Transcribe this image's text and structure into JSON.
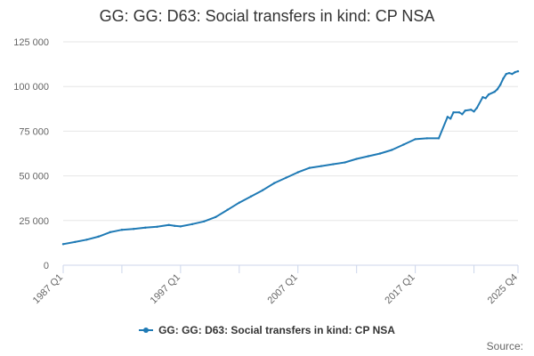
{
  "colors": {
    "series": "#1f7ab5",
    "grid": "#e6e6e6",
    "axis": "#ccd6eb",
    "text": "#666666"
  },
  "credits": "Source:",
  "chart_data": {
    "type": "line",
    "title": "GG: GG: D63: Social transfers in kind: CP NSA",
    "xlabel": "",
    "ylabel": "",
    "grid": true,
    "legend_position": "bottom",
    "x_tick_labels": [
      "1987 Q1",
      "1997 Q1",
      "2007 Q1",
      "2017 Q1",
      "2025 Q4"
    ],
    "y_tick_labels": [
      "0",
      "25 000",
      "50 000",
      "75 000",
      "100 000",
      "125 000"
    ],
    "ylim": [
      0,
      125000
    ],
    "series": [
      {
        "name": "GG: GG: D63: Social transfers in kind: CP NSA",
        "x": [
          "1987 Q1",
          "1988 Q1",
          "1989 Q1",
          "1990 Q1",
          "1991 Q1",
          "1992 Q1",
          "1993 Q1",
          "1994 Q1",
          "1995 Q1",
          "1996 Q1",
          "1996 Q3",
          "1997 Q1",
          "1998 Q1",
          "1999 Q1",
          "2000 Q1",
          "2001 Q1",
          "2002 Q1",
          "2003 Q1",
          "2004 Q1",
          "2005 Q1",
          "2006 Q1",
          "2007 Q1",
          "2008 Q1",
          "2009 Q1",
          "2010 Q1",
          "2011 Q1",
          "2012 Q1",
          "2013 Q1",
          "2014 Q1",
          "2015 Q1",
          "2016 Q1",
          "2017 Q1",
          "2018 Q1",
          "2019 Q1",
          "2019 Q4",
          "2020 Q1",
          "2020 Q2",
          "2020 Q4",
          "2021 Q1",
          "2021 Q2",
          "2021 Q4",
          "2022 Q1",
          "2022 Q2",
          "2022 Q4",
          "2023 Q1",
          "2023 Q2",
          "2023 Q4",
          "2024 Q1",
          "2024 Q2",
          "2024 Q3",
          "2024 Q4",
          "2025 Q1",
          "2025 Q2",
          "2025 Q3",
          "2025 Q4"
        ],
        "values": [
          11800,
          13000,
          14300,
          16000,
          18500,
          19800,
          20300,
          21000,
          21500,
          22500,
          22000,
          21700,
          23000,
          24500,
          27000,
          31000,
          35000,
          38500,
          42000,
          46000,
          49000,
          52000,
          54500,
          55500,
          56500,
          57500,
          59500,
          61000,
          62500,
          64500,
          67500,
          70500,
          71000,
          71000,
          83000,
          82000,
          85500,
          85500,
          84500,
          86500,
          87000,
          86000,
          88000,
          94000,
          93500,
          95500,
          97000,
          98500,
          101000,
          104500,
          107000,
          107500,
          107000,
          108000,
          108500
        ]
      }
    ]
  }
}
